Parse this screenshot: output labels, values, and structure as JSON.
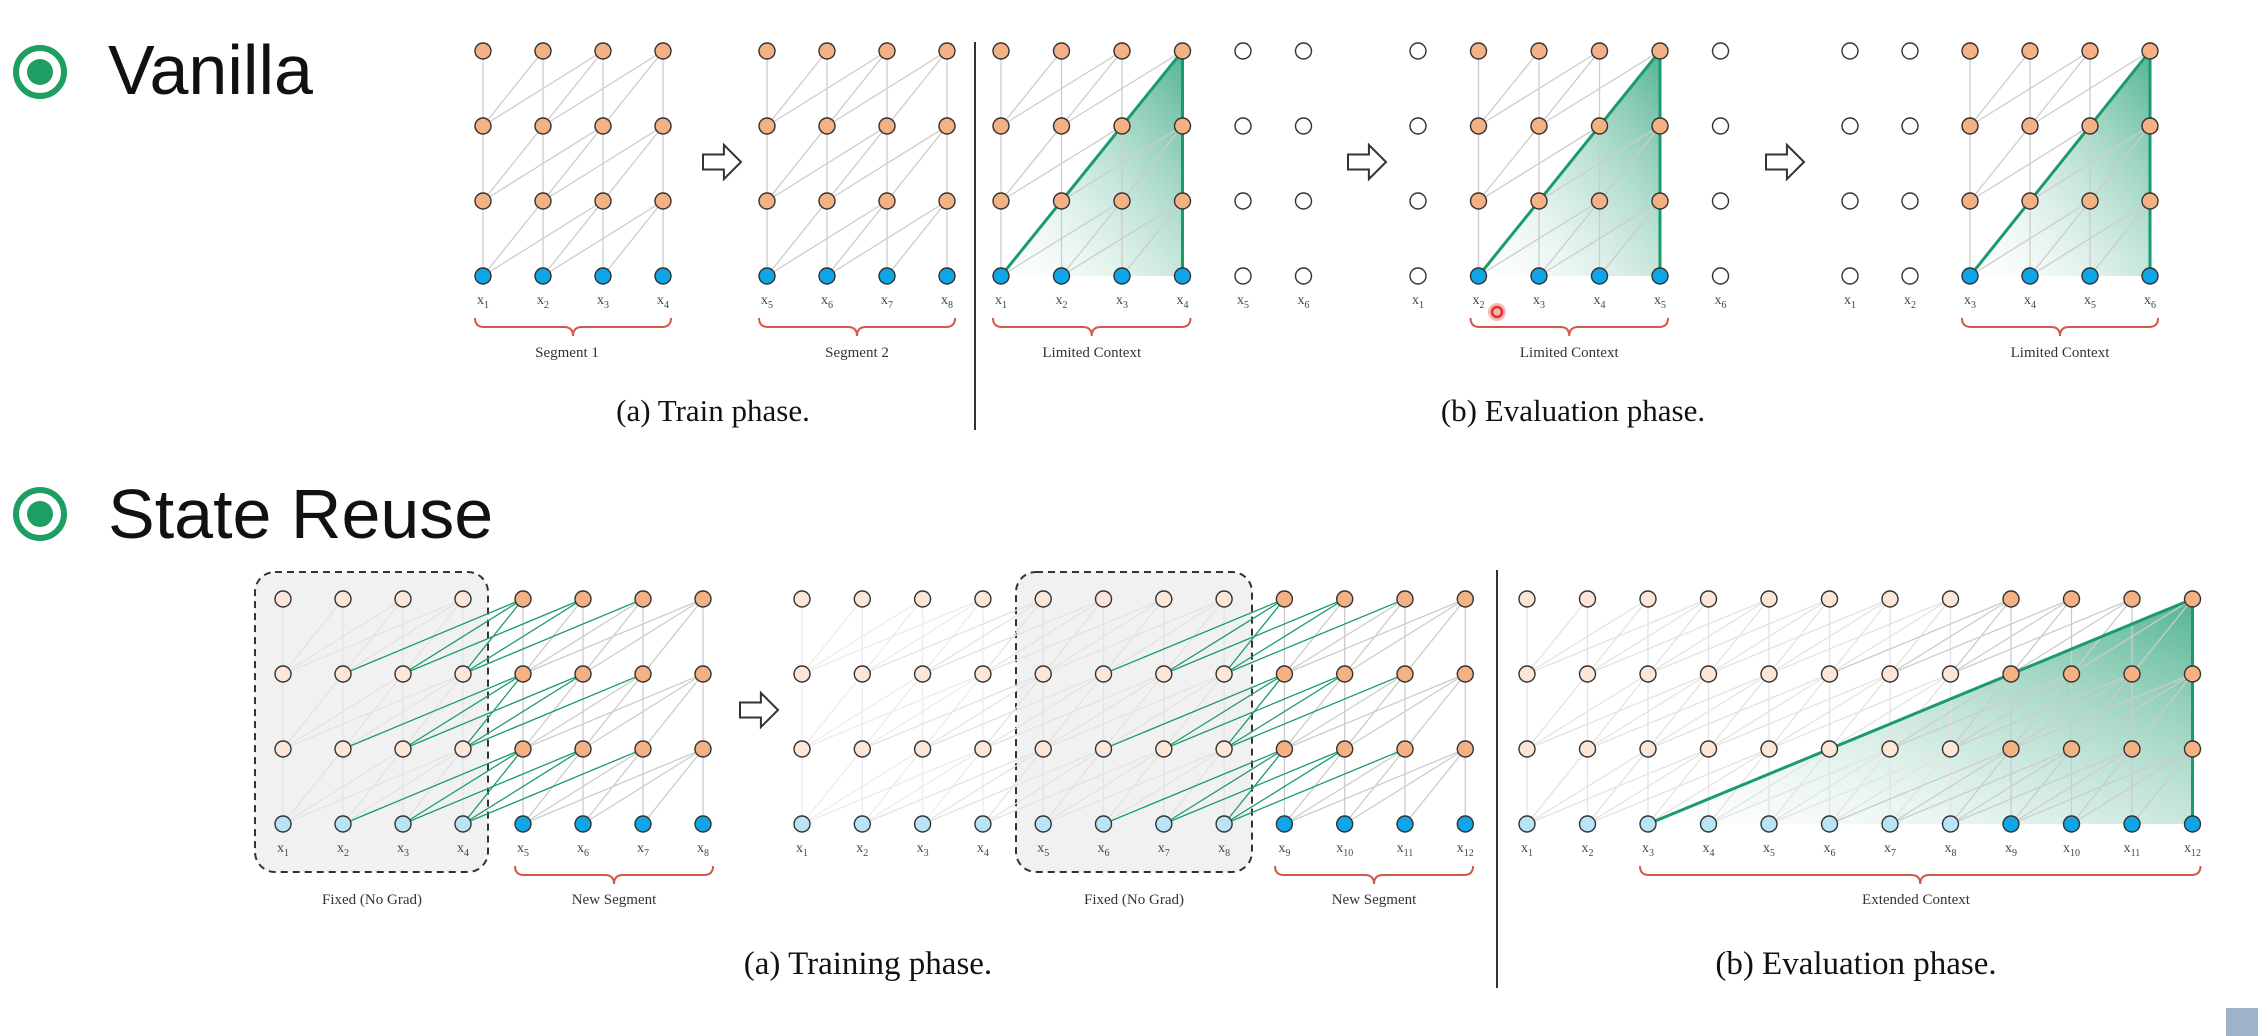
{
  "colors": {
    "hidden": "#f4b183",
    "hidden_faded": "#fbe6d8",
    "input": "#0ea5e9",
    "input_faded": "#b9e3f6",
    "empty": "#ffffff",
    "edge": "#cccccc",
    "edge_faded": "#e3e3e3",
    "green": "#1a9b6c",
    "brace": "#d35a4a",
    "bullet": "#1e9e62",
    "cursor": "#e0302a"
  },
  "sections": {
    "vanilla": {
      "title": "Vanilla",
      "bullet_icon": "bullet-circle-icon"
    },
    "state_reuse": {
      "title": "State Reuse",
      "bullet_icon": "bullet-circle-icon"
    }
  },
  "vanilla": {
    "train": {
      "segment1": {
        "tokens": [
          "1",
          "2",
          "3",
          "4"
        ],
        "label": "Segment 1"
      },
      "segment2": {
        "tokens": [
          "5",
          "6",
          "7",
          "8"
        ],
        "label": "Segment 2"
      },
      "caption": "(a) Train phase."
    },
    "eval": {
      "panel1": {
        "tokens": [
          "1",
          "2",
          "3",
          "4",
          "5",
          "6"
        ],
        "label": "Limited Context"
      },
      "panel2": {
        "tokens": [
          "1",
          "2",
          "3",
          "4",
          "5",
          "6"
        ],
        "label": "Limited Context"
      },
      "panel3": {
        "tokens": [
          "1",
          "2",
          "3",
          "4",
          "5",
          "6"
        ],
        "label": "Limited Context"
      },
      "caption": "(b) Evaluation phase."
    }
  },
  "reuse": {
    "train": {
      "step1": {
        "tokens": [
          "1",
          "2",
          "3",
          "4",
          "5",
          "6",
          "7",
          "8"
        ],
        "fixed_label": "Fixed (No Grad)",
        "new_label": "New Segment"
      },
      "step2": {
        "tokens": [
          "1",
          "2",
          "3",
          "4",
          "5",
          "6",
          "7",
          "8",
          "9",
          "10",
          "11",
          "12"
        ],
        "fixed_label": "Fixed (No Grad)",
        "new_label": "New Segment"
      },
      "caption": "(a) Training phase."
    },
    "eval": {
      "tokens": [
        "1",
        "2",
        "3",
        "4",
        "5",
        "6",
        "7",
        "8",
        "9",
        "10",
        "11",
        "12"
      ],
      "label": "Extended Context",
      "caption": "(b) Evaluation phase."
    }
  }
}
